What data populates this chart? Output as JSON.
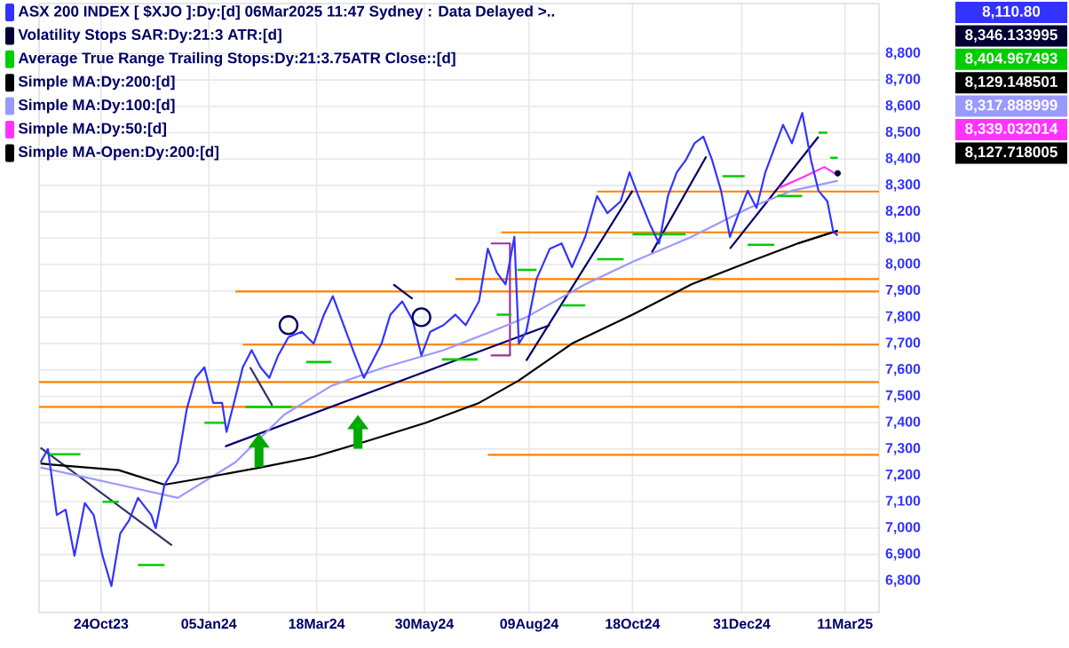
{
  "chart_data": {
    "type": "line",
    "xlim": [
      "2023-09-12",
      "2025-04-03"
    ],
    "ylim": [
      6680,
      8990
    ],
    "xticks": [
      {
        "value": "2023-10-24",
        "label": "24Oct23"
      },
      {
        "value": "2024-01-05",
        "label": "05Jan24"
      },
      {
        "value": "2024-03-18",
        "label": "18Mar24"
      },
      {
        "value": "2024-05-30",
        "label": "30May24"
      },
      {
        "value": "2024-08-09",
        "label": "09Aug24"
      },
      {
        "value": "2024-10-18",
        "label": "18Oct24"
      },
      {
        "value": "2024-12-31",
        "label": "31Dec24"
      },
      {
        "value": "2025-03-11",
        "label": "11Mar25"
      }
    ],
    "yticks": [
      {
        "value": 6800,
        "label": "6,800"
      },
      {
        "value": 6900,
        "label": "6,900"
      },
      {
        "value": 7000,
        "label": "7,000"
      },
      {
        "value": 7100,
        "label": "7,100"
      },
      {
        "value": 7200,
        "label": "7,200"
      },
      {
        "value": 7300,
        "label": "7,300"
      },
      {
        "value": 7400,
        "label": "7,400"
      },
      {
        "value": 7500,
        "label": "7,500"
      },
      {
        "value": 7600,
        "label": "7,600"
      },
      {
        "value": 7700,
        "label": "7,700"
      },
      {
        "value": 7800,
        "label": "7,800"
      },
      {
        "value": 7900,
        "label": "7,900"
      },
      {
        "value": 8000,
        "label": "8,000"
      },
      {
        "value": 8100,
        "label": "8,100"
      },
      {
        "value": 8200,
        "label": "8,200"
      },
      {
        "value": 8300,
        "label": "8,300"
      },
      {
        "value": 8400,
        "label": "8,400"
      },
      {
        "value": 8500,
        "label": "8,500"
      },
      {
        "value": 8600,
        "label": "8,600"
      },
      {
        "value": 8700,
        "label": "8,700"
      },
      {
        "value": 8800,
        "label": "8,800"
      }
    ],
    "grid": true,
    "legend": "top left",
    "annotations": [
      "8,110.80",
      "8,346.133995",
      "8,404.967493",
      "8,129.148501",
      "8,317.888999",
      "8,339.032014",
      "8,127.718005"
    ],
    "series": [
      {
        "name": "ASX 200 INDEX [ $XJO ]:Dy:[d]  06Mar2025 11:47 Sydney : Data Delayed >..",
        "color": "#3333ff",
        "x": [
          "2023-09-13",
          "2023-09-18",
          "2023-09-24",
          "2023-09-30",
          "2023-10-06",
          "2023-10-13",
          "2023-10-19",
          "2023-10-25",
          "2023-10-31",
          "2023-11-06",
          "2023-11-12",
          "2023-11-18",
          "2023-11-27",
          "2023-11-30",
          "2023-12-06",
          "2023-12-15",
          "2023-12-21",
          "2023-12-27",
          "2024-01-02",
          "2024-01-08",
          "2024-01-14",
          "2024-01-17",
          "2024-01-22",
          "2024-01-28",
          "2024-02-03",
          "2024-02-09",
          "2024-02-15",
          "2024-02-21",
          "2024-02-28",
          "2024-03-08",
          "2024-03-16",
          "2024-03-23",
          "2024-03-29",
          "2024-04-04",
          "2024-04-13",
          "2024-04-19",
          "2024-04-25",
          "2024-05-01",
          "2024-05-07",
          "2024-05-15",
          "2024-05-22",
          "2024-05-28",
          "2024-06-03",
          "2024-06-12",
          "2024-06-20",
          "2024-06-27",
          "2024-07-06",
          "2024-07-12",
          "2024-07-18",
          "2024-07-24",
          "2024-07-30",
          "2024-08-02",
          "2024-08-07",
          "2024-08-14",
          "2024-08-23",
          "2024-08-31",
          "2024-09-07",
          "2024-09-16",
          "2024-09-24",
          "2024-10-01",
          "2024-10-10",
          "2024-10-16",
          "2024-10-22",
          "2024-10-30",
          "2024-11-05",
          "2024-11-11",
          "2024-11-17",
          "2024-11-23",
          "2024-11-29",
          "2024-12-05",
          "2024-12-11",
          "2024-12-17",
          "2024-12-23",
          "2024-12-29",
          "2025-01-04",
          "2025-01-10",
          "2025-01-16",
          "2025-01-22",
          "2025-01-28",
          "2025-02-03",
          "2025-02-10",
          "2025-02-16",
          "2025-02-21",
          "2025-02-27",
          "2025-03-03",
          "2025-03-06"
        ],
        "values": [
          7250,
          7300,
          7050,
          7070,
          6895,
          7095,
          7050,
          6895,
          6780,
          6980,
          7030,
          7115,
          7050,
          7000,
          7165,
          7250,
          7450,
          7570,
          7610,
          7475,
          7475,
          7365,
          7475,
          7610,
          7675,
          7610,
          7570,
          7655,
          7725,
          7745,
          7700,
          7810,
          7880,
          7790,
          7655,
          7570,
          7635,
          7700,
          7810,
          7860,
          7790,
          7655,
          7745,
          7770,
          7810,
          7770,
          7860,
          8060,
          7970,
          7925,
          8105,
          7700,
          7745,
          7945,
          8060,
          8080,
          7990,
          8105,
          8260,
          8195,
          8240,
          8350,
          8260,
          8150,
          8080,
          8260,
          8350,
          8395,
          8460,
          8485,
          8395,
          8280,
          8105,
          8195,
          8280,
          8215,
          8350,
          8440,
          8530,
          8460,
          8575,
          8395,
          8280,
          8240,
          8125,
          8110
        ]
      },
      {
        "name": "Volatility Stops SAR:Dy:21:3 ATR:[d]",
        "color": "#000033",
        "type": "scatter",
        "marker": "circle",
        "x": [
          "2025-03-06"
        ],
        "values": [
          8346
        ]
      },
      {
        "name": "Average True Range Trailing Stops:Dy:21:3.75ATR Close::[d]",
        "color": "#00cc00",
        "type": "step",
        "x": [
          "2023-09-18",
          "2023-10-10",
          "2023-10-11",
          "2023-10-25",
          "2023-11-05",
          "2023-11-06",
          "2023-11-18",
          "2023-12-06",
          "2023-12-07",
          "2024-01-02",
          "2024-01-16",
          "2024-01-17",
          "2024-01-30",
          "2024-03-01",
          "2024-03-02",
          "2024-03-11",
          "2024-03-28",
          "2024-03-29",
          "2024-06-11",
          "2024-07-05",
          "2024-07-06",
          "2024-07-18",
          "2024-07-28",
          "2024-07-29",
          "2024-08-01",
          "2024-08-14",
          "2024-08-15",
          "2024-08-31",
          "2024-09-16",
          "2024-09-17",
          "2024-09-24",
          "2024-10-12",
          "2024-10-13",
          "2024-10-18",
          "2024-11-23",
          "2024-11-24",
          "2024-12-18",
          "2025-01-02",
          "2025-01-03",
          "2025-01-04",
          "2025-01-22",
          "2025-01-23",
          "2025-01-24",
          "2025-02-10",
          "2025-02-11",
          "2025-02-21",
          "2025-02-27",
          "2025-02-28",
          "2025-03-01",
          "2025-03-06"
        ],
        "values": [
          7280,
          7280,
          null,
          7100,
          7100,
          null,
          6860,
          6860,
          null,
          7400,
          7400,
          null,
          7460,
          7460,
          null,
          7630,
          7630,
          null,
          7640,
          7640,
          null,
          7810,
          7810,
          null,
          7980,
          7980,
          null,
          7845,
          7845,
          null,
          8020,
          8020,
          null,
          8115,
          8115,
          null,
          8335,
          8335,
          null,
          8075,
          8075,
          null,
          8260,
          8260,
          null,
          8500,
          8500,
          null,
          8405,
          8405
        ]
      },
      {
        "name": "Simple MA:Dy:200:[d]",
        "color": "#000000",
        "x": [
          "2023-09-13",
          "2023-09-22",
          "2023-11-05",
          "2023-12-06",
          "2023-12-27",
          "2024-02-09",
          "2024-03-16",
          "2024-04-21",
          "2024-05-31",
          "2024-07-06",
          "2024-08-02",
          "2024-09-07",
          "2024-10-18",
          "2024-11-27",
          "2025-01-05",
          "2025-02-07",
          "2025-03-06"
        ],
        "values": [
          7245,
          7240,
          7220,
          7165,
          7185,
          7230,
          7270,
          7330,
          7400,
          7475,
          7560,
          7700,
          7810,
          7925,
          8010,
          8080,
          8129
        ]
      },
      {
        "name": "Simple MA:Dy:100:[d]",
        "color": "#9999ff",
        "x": [
          "2023-09-13",
          "2023-11-05",
          "2023-12-15",
          "2024-01-23",
          "2024-02-25",
          "2024-03-28",
          "2024-05-03",
          "2024-06-12",
          "2024-07-14",
          "2024-08-07",
          "2024-09-16",
          "2024-10-18",
          "2024-11-27",
          "2025-01-05",
          "2025-02-03",
          "2025-03-06"
        ],
        "values": [
          7230,
          7165,
          7115,
          7250,
          7430,
          7540,
          7610,
          7675,
          7745,
          7800,
          7925,
          8010,
          8105,
          8215,
          8280,
          8318
        ]
      },
      {
        "name": "Simple MA:Dy:50:[d]",
        "color": "#ff33ff",
        "x": [
          "2025-01-25",
          "2025-02-10",
          "2025-02-25",
          "2025-03-06"
        ],
        "values": [
          8290,
          8330,
          8370,
          8339
        ]
      },
      {
        "name": "Simple MA-Open:Dy:200:[d]",
        "color": "#000000",
        "x": [
          "2025-02-07",
          "2025-03-06"
        ],
        "values": [
          8080,
          8128
        ]
      },
      {
        "color": "#ff8000",
        "x": [
          "2024-09-24",
          "2025-04-03"
        ],
        "values": [
          8277,
          8277
        ]
      },
      {
        "color": "#ff8000",
        "x": [
          "2024-07-21",
          "2025-04-03"
        ],
        "values": [
          8122,
          8122
        ]
      },
      {
        "color": "#ff8000",
        "x": [
          "2024-06-20",
          "2025-04-03"
        ],
        "values": [
          7945,
          7945
        ]
      },
      {
        "color": "#ff8000",
        "x": [
          "2024-01-23",
          "2025-04-03"
        ],
        "values": [
          7898,
          7898
        ]
      },
      {
        "color": "#ff8000",
        "x": [
          "2024-01-28",
          "2025-04-03"
        ],
        "values": [
          7696,
          7696
        ]
      },
      {
        "color": "#ff8000",
        "x": [
          "2023-09-12",
          "2025-04-03"
        ],
        "values": [
          7554,
          7554
        ]
      },
      {
        "color": "#ff8000",
        "x": [
          "2023-09-12",
          "2025-04-03"
        ],
        "values": [
          7460,
          7460
        ]
      },
      {
        "color": "#ff8000",
        "x": [
          "2024-07-12",
          "2025-04-03"
        ],
        "values": [
          7278,
          7278
        ]
      },
      {
        "color": "#000066",
        "x": [
          "2024-01-16",
          "2024-08-23"
        ],
        "values": [
          7310,
          7770
        ]
      },
      {
        "color": "#333366",
        "x": [
          "2023-09-13",
          "2023-12-11"
        ],
        "values": [
          7305,
          6935
        ]
      },
      {
        "color": "#333366",
        "x": [
          "2024-02-02",
          "2024-02-17"
        ],
        "values": [
          7610,
          7465
        ]
      },
      {
        "color": "#000066",
        "x": [
          "2024-05-09",
          "2024-05-22"
        ],
        "values": [
          7925,
          7870
        ]
      },
      {
        "color": "#000066",
        "x": [
          "2024-08-07",
          "2024-10-18"
        ],
        "values": [
          7635,
          8280
        ]
      },
      {
        "color": "#000066",
        "x": [
          "2024-10-31",
          "2024-12-07"
        ],
        "values": [
          8045,
          8410
        ]
      },
      {
        "color": "#000066",
        "x": [
          "2024-12-23",
          "2025-02-21"
        ],
        "values": [
          8060,
          8485
        ]
      },
      {
        "color": "#993399",
        "x": [
          "2024-07-14",
          "2024-07-27",
          "2024-07-27",
          "2024-07-14"
        ],
        "values": [
          8080,
          8080,
          7655,
          7655
        ]
      }
    ]
  }
}
